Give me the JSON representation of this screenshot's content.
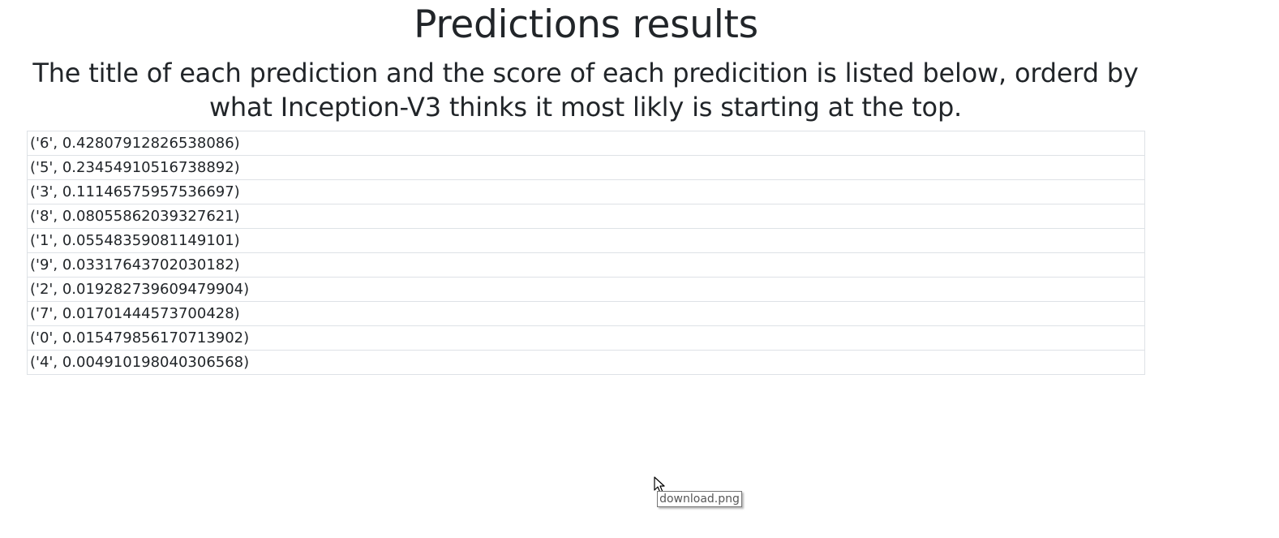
{
  "page": {
    "title": "Predictions results",
    "subtitle": "The title of each prediction and the score of each predicition is listed below, orderd by what Inception-V3 thinks it most likly is starting at the top."
  },
  "predictions": [
    "('6', 0.42807912826538086)",
    "('5', 0.23454910516738892)",
    "('3', 0.11146575957536697)",
    "('8', 0.08055862039327621)",
    "('1', 0.05548359081149101)",
    "('9', 0.03317643702030182)",
    "('2', 0.019282739609479904)",
    "('7', 0.01701444573700428)",
    "('0', 0.015479856170713902)",
    "('4', 0.004910198040306568)"
  ],
  "cursor": {
    "icon": "mouse-pointer-icon"
  },
  "tooltip": {
    "text": "download.png"
  }
}
